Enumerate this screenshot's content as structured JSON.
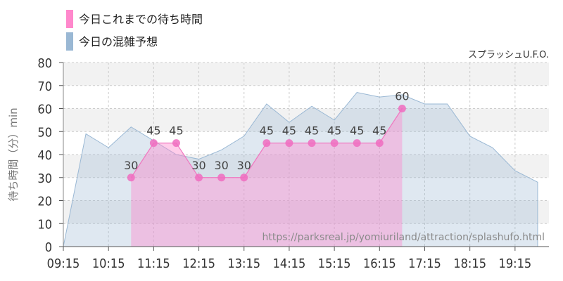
{
  "chart_data": {
    "type": "area",
    "title": "",
    "attraction": "スプラッシュU.F.O.",
    "watermark": "https://parksreal.jp/yomiuriland/attraction/splashufo.html",
    "ylabel": "待ち時間（分）min",
    "xlabel": "",
    "ylim": [
      0,
      80
    ],
    "yticks": [
      0,
      10,
      20,
      30,
      40,
      50,
      60,
      70,
      80
    ],
    "xlim": [
      "09:15",
      "20:00"
    ],
    "xticks": [
      "09:15",
      "10:15",
      "11:15",
      "12:15",
      "13:15",
      "14:15",
      "15:15",
      "16:15",
      "17:15",
      "18:15",
      "19:15"
    ],
    "legend_position": "top-left",
    "grid": true,
    "series": [
      {
        "name": "今日の混雑予想",
        "color": "#9ab8d4",
        "kind": "forecast-area",
        "points": [
          [
            "09:15",
            0
          ],
          [
            "09:45",
            49
          ],
          [
            "10:15",
            43
          ],
          [
            "10:45",
            52
          ],
          [
            "11:15",
            46
          ],
          [
            "11:45",
            40
          ],
          [
            "12:15",
            38
          ],
          [
            "12:45",
            42
          ],
          [
            "13:15",
            48
          ],
          [
            "13:45",
            62
          ],
          [
            "14:15",
            54
          ],
          [
            "14:45",
            61
          ],
          [
            "15:15",
            55
          ],
          [
            "15:45",
            67
          ],
          [
            "16:15",
            65
          ],
          [
            "16:45",
            66
          ],
          [
            "17:15",
            62
          ],
          [
            "17:45",
            62
          ],
          [
            "18:15",
            48
          ],
          [
            "18:45",
            43
          ],
          [
            "19:15",
            33
          ],
          [
            "19:45",
            28
          ]
        ]
      },
      {
        "name": "今日これまでの待ち時間",
        "color": "#ff88cc",
        "kind": "actual-area",
        "points": [
          [
            "10:45",
            30
          ],
          [
            "11:15",
            45
          ],
          [
            "11:45",
            45
          ],
          [
            "12:15",
            30
          ],
          [
            "12:45",
            30
          ],
          [
            "13:15",
            30
          ],
          [
            "13:45",
            45
          ],
          [
            "14:15",
            45
          ],
          [
            "14:45",
            45
          ],
          [
            "15:15",
            45
          ],
          [
            "15:45",
            45
          ],
          [
            "16:15",
            45
          ],
          [
            "16:45",
            60
          ]
        ],
        "labels": [
          "30",
          "45",
          "45",
          "30",
          "30",
          "30",
          "45",
          "45",
          "45",
          "45",
          "45",
          "45",
          "60"
        ]
      }
    ]
  },
  "legend": [
    {
      "label": "今日これまでの待ち時間",
      "color": "#ff88cc"
    },
    {
      "label": "今日の混雑予想",
      "color": "#9ab8d4"
    }
  ]
}
